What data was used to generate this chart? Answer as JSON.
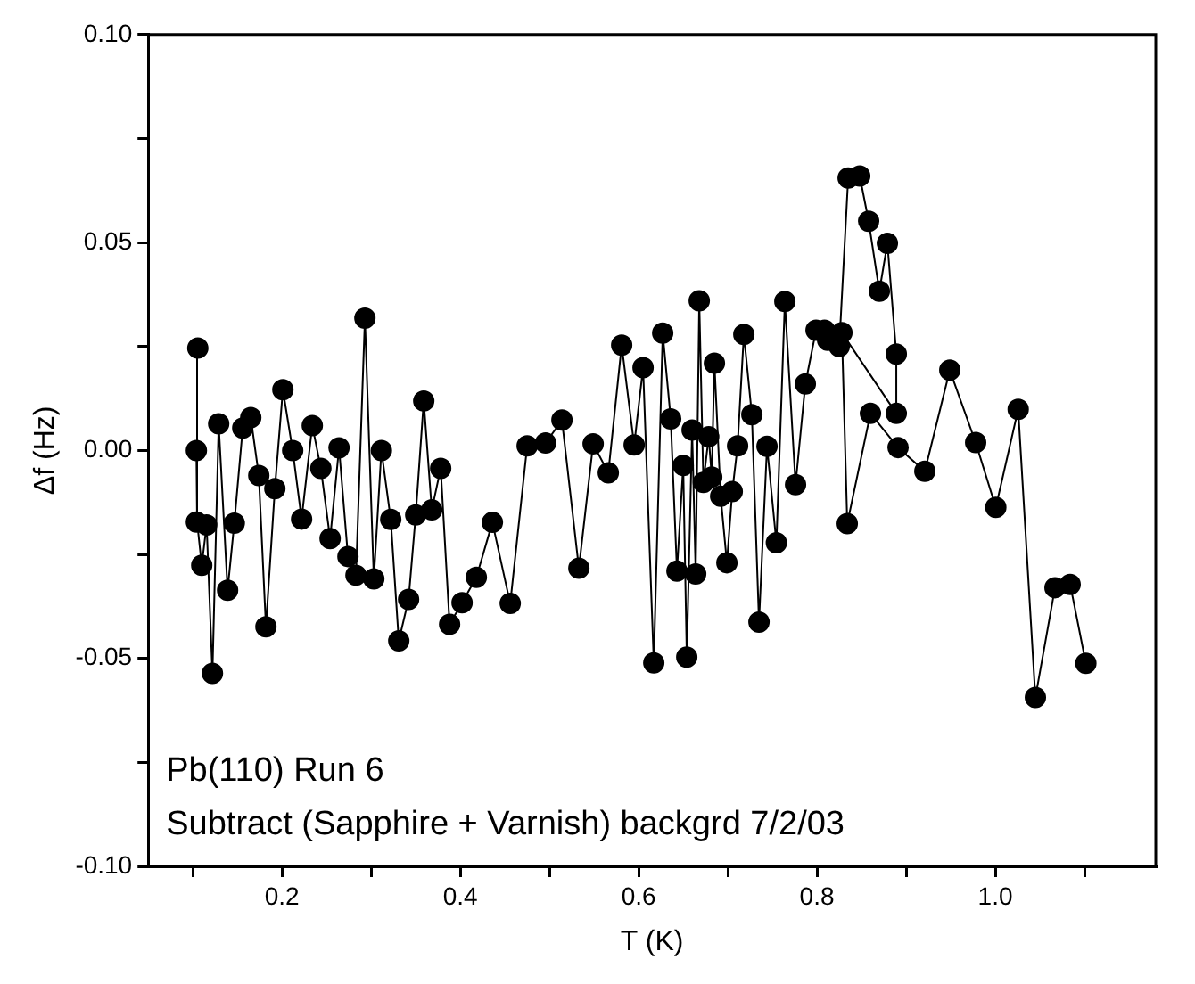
{
  "chart_data": {
    "type": "line",
    "xlabel": "T (K)",
    "ylabel": "Δf (Hz)",
    "marker": "circle",
    "line_style": "solid",
    "grid": false,
    "legend": false,
    "annotations": [
      "Pb(110) Run 6",
      "Subtract (Sapphire + Varnish) backgrd 7/2/03"
    ],
    "xlim": [
      0.05,
      1.18
    ],
    "ylim": [
      -0.1,
      0.1
    ],
    "xticks": [
      {
        "value": 0.1,
        "label": null
      },
      0.2,
      {
        "value": 0.3,
        "label": null
      },
      0.4,
      {
        "value": 0.5,
        "label": null
      },
      0.6,
      {
        "value": 0.7,
        "label": null
      },
      0.8,
      {
        "value": 0.9,
        "label": null
      },
      {
        "value": 1.0,
        "label": "1.0"
      },
      {
        "value": 1.1,
        "label": null
      }
    ],
    "yticks": [
      {
        "value": -0.1,
        "label": "-0.10"
      },
      {
        "value": -0.075,
        "label": null
      },
      {
        "value": -0.05,
        "label": "-0.05"
      },
      {
        "value": -0.025,
        "label": null
      },
      {
        "value": 0,
        "label": "0.00"
      },
      {
        "value": 0.025,
        "label": null
      },
      0.05,
      {
        "value": 0.075,
        "label": null
      },
      {
        "value": 0.1,
        "label": "0.10"
      }
    ],
    "series": [
      {
        "color": "#000000",
        "x": [
          0.104,
          0.1056,
          0.104,
          0.11,
          0.1155,
          0.122,
          0.129,
          0.139,
          0.1465,
          0.156,
          0.165,
          0.174,
          0.182,
          0.192,
          0.201,
          0.212,
          0.222,
          0.234,
          0.2436,
          0.254,
          0.264,
          0.274,
          0.283,
          0.293,
          0.303,
          0.3115,
          0.322,
          0.331,
          0.342,
          0.35,
          0.359,
          0.368,
          0.378,
          0.388,
          0.402,
          0.418,
          0.436,
          0.456,
          0.475,
          0.4957,
          0.514,
          0.533,
          0.549,
          0.566,
          0.581,
          0.595,
          0.605,
          0.617,
          0.627,
          0.636,
          0.643,
          0.65,
          0.654,
          0.66,
          0.664,
          0.668,
          0.6726,
          0.6786,
          0.682,
          0.685,
          0.692,
          0.699,
          0.705,
          0.711,
          0.718,
          0.727,
          0.735,
          0.744,
          0.7545,
          0.764,
          0.776,
          0.787,
          0.799,
          0.8085,
          0.812,
          0.825,
          0.835,
          0.848,
          0.858,
          0.87,
          0.879,
          0.889,
          0.889,
          0.828,
          0.834,
          0.86,
          0.891,
          0.921,
          0.949,
          0.978,
          1.0006,
          1.0257,
          1.045,
          1.067,
          1.084,
          1.1016
        ],
        "values": [
          0,
          0.0246,
          -0.0172,
          -0.0276,
          -0.0179,
          -0.0536,
          0.0064,
          -0.0336,
          -0.0175,
          0.0054,
          0.0079,
          -0.006,
          -0.0424,
          -0.0092,
          0.0146,
          0,
          -0.0165,
          0.006,
          -0.0043,
          -0.0212,
          0.0006,
          -0.0255,
          -0.03,
          0.0318,
          -0.0309,
          0,
          -0.0166,
          -0.0458,
          -0.0358,
          -0.0155,
          0.0119,
          -0.0143,
          -0.0043,
          -0.0418,
          -0.0366,
          -0.0305,
          -0.0173,
          -0.0368,
          0.0011,
          0.0018,
          0.0073,
          -0.0283,
          0.0016,
          -0.0054,
          0.0253,
          0.0013,
          0.0199,
          -0.0511,
          0.0282,
          0.0076,
          -0.029,
          -0.0036,
          -0.0497,
          0.0049,
          -0.0297,
          0.036,
          -0.0077,
          0.0033,
          -0.0064,
          0.021,
          -0.011,
          -0.027,
          -0.0099,
          0.0011,
          0.0279,
          0.0086,
          -0.0413,
          0.001,
          -0.0222,
          0.0358,
          -0.0082,
          0.016,
          0.0289,
          0.0289,
          0.0265,
          0.025,
          0.0655,
          0.066,
          0.0551,
          0.0383,
          0.0498,
          0.0232,
          0.0089,
          0.0283,
          -0.0176,
          0.0089,
          0.0007,
          -0.005,
          0.0193,
          0.0019,
          -0.0137,
          0.0099,
          -0.0594,
          -0.033,
          -0.0322,
          -0.0512
        ]
      }
    ]
  }
}
